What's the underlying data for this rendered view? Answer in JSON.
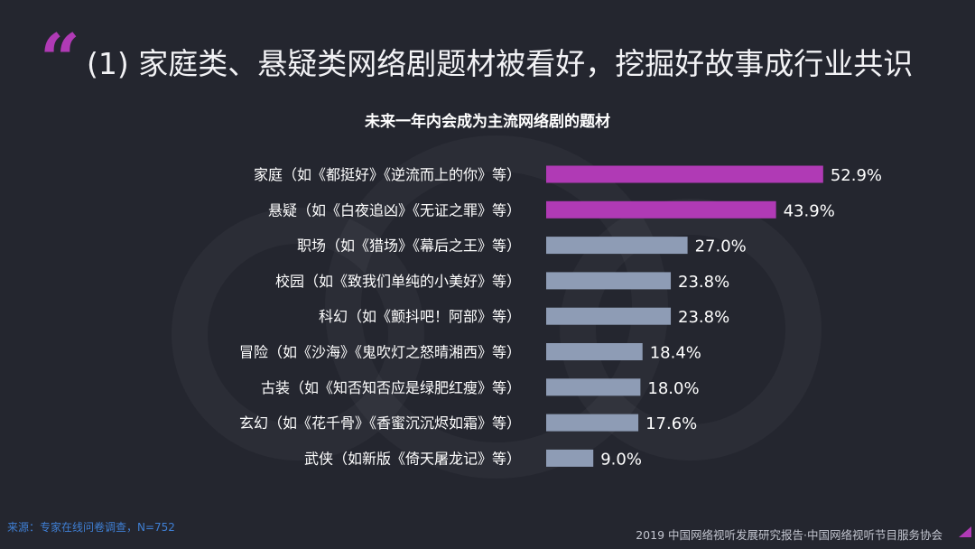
{
  "page": {
    "quote_glyph": "“",
    "title": "(1) 家庭类、悬疑类网络剧题材被看好，挖掘好故事成行业共识",
    "source_note": "来源：专家在线问卷调查，N=752",
    "report_credit": "2019 中国网络视听发展研究报告·中国网络视听节目服务协会"
  },
  "colors": {
    "background": "#24262f",
    "highlight_bar": "#b03ab5",
    "normal_bar": "#8e9cb5",
    "label_text": "#ffffff",
    "accent": "#b03ab5"
  },
  "chart_data": {
    "type": "bar",
    "orientation": "horizontal",
    "title": "未来一年内会成为主流网络剧的题材",
    "categories": [
      "家庭（如《都挺好》《逆流而上的你》等）",
      "悬疑（如《白夜追凶》《无证之罪》等）",
      "职场（如《猎场》《幕后之王》等）",
      "校园（如《致我们单纯的小美好》等）",
      "科幻（如《颤抖吧！阿部》等）",
      "冒险（如《沙海》《鬼吹灯之怒晴湘西》等）",
      "古装（如《知否知否应是绿肥红瘦》等）",
      "玄幻（如《花千骨》《香蜜沉沉烬如霜》等）",
      "武侠（如新版《倚天屠龙记》等）"
    ],
    "values": [
      52.9,
      43.9,
      27.0,
      23.8,
      23.8,
      18.4,
      18.0,
      17.6,
      9.0
    ],
    "value_labels": [
      "52.9%",
      "43.9%",
      "27.0%",
      "23.8%",
      "23.8%",
      "18.4%",
      "18.0%",
      "17.6%",
      "9.0%"
    ],
    "highlighted": [
      true,
      true,
      false,
      false,
      false,
      false,
      false,
      false,
      false
    ],
    "unit": "%",
    "xlim": [
      0,
      60
    ],
    "grid": false,
    "legend": "none"
  }
}
